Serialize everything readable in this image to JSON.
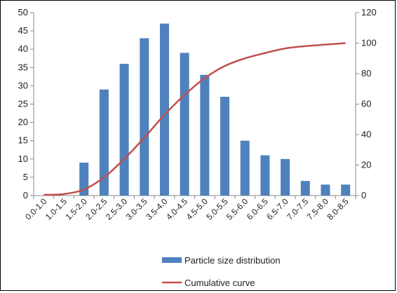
{
  "chart_data": {
    "type": "bar",
    "title": "",
    "xlabel": "",
    "ylabel": "",
    "categories": [
      "0.0-1.0",
      "1.0-1.5",
      "1.5-2.0",
      "2.0-2.5",
      "2.5-3.0",
      "3.0-3.5",
      "3.5-4.0",
      "4.0-4.5",
      "4.5-5.0",
      "5.0-5.5",
      "5.5-6.0",
      "6.0-6.5",
      "6.5-7.0",
      "7.0-7.5",
      "7.5-8.0",
      "8.0-8.5"
    ],
    "series": [
      {
        "name": "Particle size distribution",
        "type": "bar",
        "axis": "left",
        "color": "#4F81BD",
        "values": [
          0,
          0,
          9,
          29,
          36,
          43,
          47,
          39,
          33,
          27,
          15,
          11,
          10,
          4,
          3,
          3
        ]
      },
      {
        "name": "Cumulative curve",
        "type": "line",
        "axis": "right",
        "color": "#C0504D",
        "values": [
          0.5,
          1,
          4,
          12,
          24,
          38,
          53,
          66,
          77,
          85,
          90,
          93.5,
          96.5,
          98,
          99,
          100
        ]
      }
    ],
    "ylim_left": [
      0,
      50
    ],
    "yticks_left": [
      0,
      5,
      10,
      15,
      20,
      25,
      30,
      35,
      40,
      45,
      50
    ],
    "ylim_right": [
      0,
      120
    ],
    "yticks_right": [
      0,
      20,
      40,
      60,
      80,
      100,
      120
    ],
    "grid": false,
    "legend_position": "bottom"
  }
}
